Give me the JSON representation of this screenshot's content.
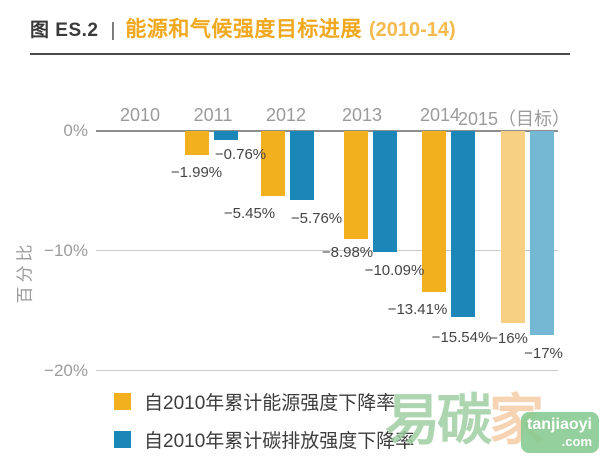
{
  "header": {
    "figure_label": "图 ES.2",
    "separator": "|",
    "title": "能源和气候强度目标进展",
    "title_period": "(2010-14)"
  },
  "chart_data": {
    "type": "bar",
    "title": "能源和气候强度目标进展 (2010-14)",
    "ylabel": "百分比",
    "ylim": [
      -20,
      0
    ],
    "grid": true,
    "legend_position": "bottom-left",
    "yticks": [
      {
        "value": 0,
        "label": "0%"
      },
      {
        "value": -10,
        "label": "−10%"
      },
      {
        "value": -20,
        "label": "−20%"
      }
    ],
    "categories": [
      "2010",
      "2011",
      "2012",
      "2013",
      "2014",
      "2015（目标）"
    ],
    "target_category_index": 5,
    "series": [
      {
        "key": "energy",
        "name": "自2010年累计能源强度下降率",
        "color": "#f2b01f",
        "target_color": "#f8d084",
        "values": [
          null,
          -1.99,
          -5.45,
          -8.98,
          -13.41,
          -16
        ],
        "value_labels": [
          null,
          "−1.99%",
          "−5.45%",
          "−8.98%",
          "−13.41%",
          "−16%"
        ]
      },
      {
        "key": "carbon",
        "name": "自2010年累计碳排放强度下降率",
        "color": "#1b87b9",
        "target_color": "#74b8d3",
        "values": [
          null,
          -0.76,
          -5.76,
          -10.09,
          -15.54,
          -17
        ],
        "value_labels": [
          null,
          "−0.76%",
          "−5.76%",
          "−10.09%",
          "−15.54%",
          "−17%"
        ]
      }
    ]
  },
  "legend": {
    "items": [
      {
        "label": "自2010年累计能源强度下降率",
        "color": "#f2b01f"
      },
      {
        "label": "自2010年累计碳排放强度下降率",
        "color": "#1b87b9"
      }
    ]
  },
  "watermark": {
    "text_green": "易碳",
    "text_peach": "家",
    "badge_line1": "tanjiaoyi",
    "badge_line2": ".com"
  }
}
